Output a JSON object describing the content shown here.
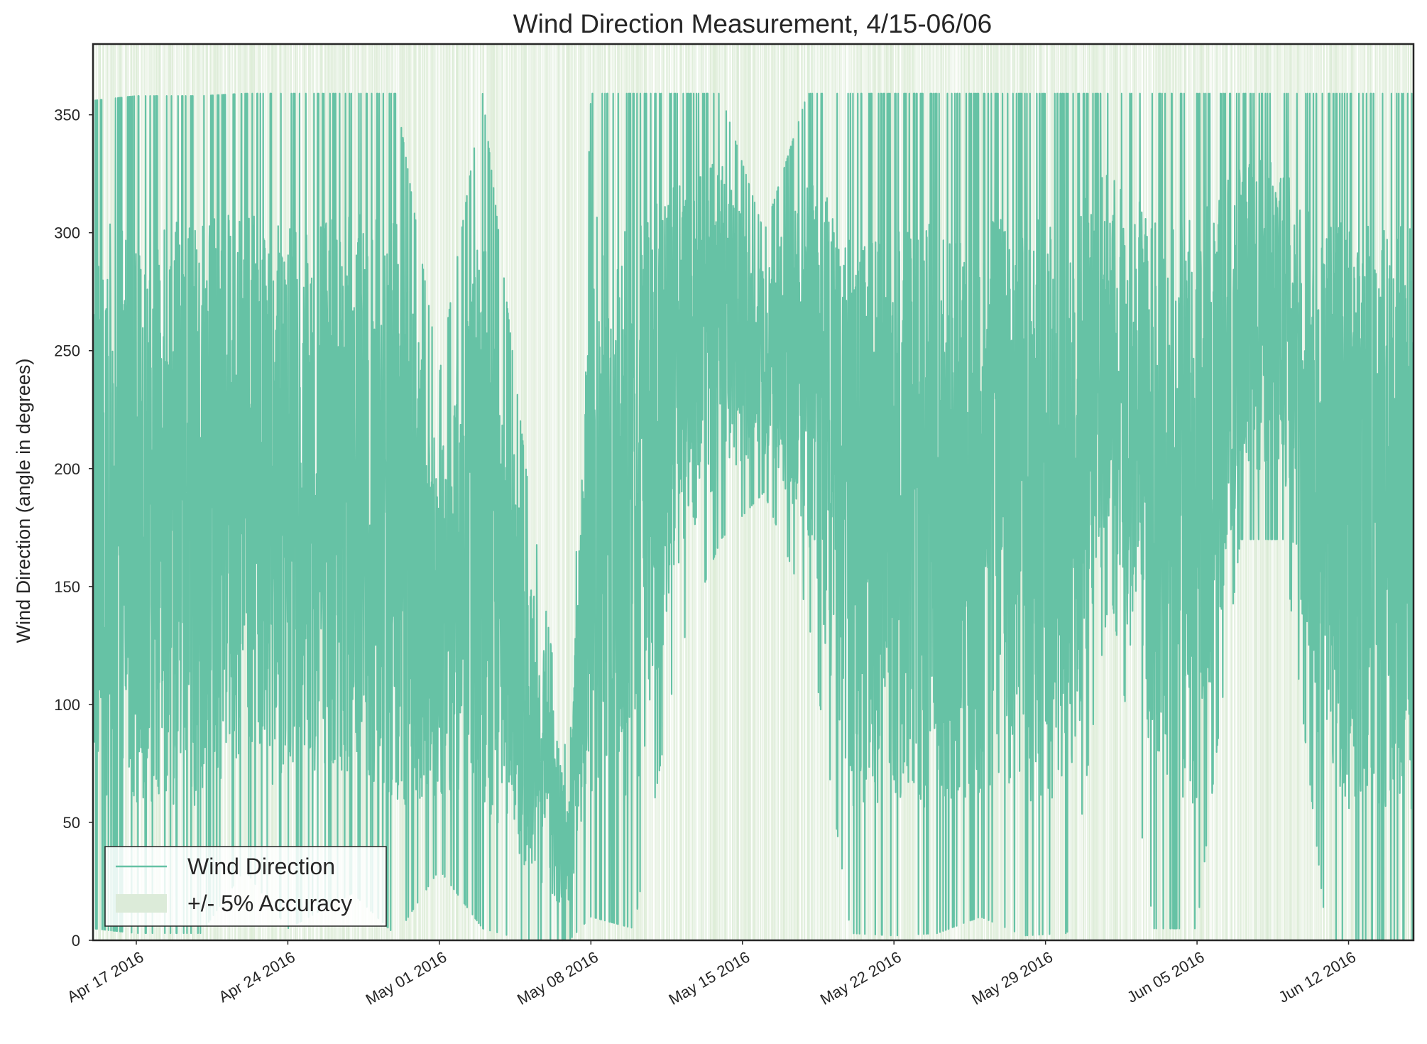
{
  "chart_data": {
    "type": "line",
    "title": "Wind Direction Measurement, 4/15-06/06",
    "xlabel": "",
    "ylabel": "Wind Direction (angle in degrees)",
    "x_range": [
      "2016-04-15",
      "2016-06-15"
    ],
    "ylim": [
      0,
      380
    ],
    "y_ticks": [
      0,
      50,
      100,
      150,
      200,
      250,
      300,
      350
    ],
    "y_tick_labels": [
      "0",
      "50",
      "100",
      "150",
      "200",
      "250",
      "300",
      "350"
    ],
    "x_ticks": [
      "2016-04-17",
      "2016-04-24",
      "2016-05-01",
      "2016-05-08",
      "2016-05-15",
      "2016-05-22",
      "2016-05-29",
      "2016-06-05",
      "2016-06-12"
    ],
    "x_tick_labels": [
      "Apr 17 2016",
      "Apr 24 2016",
      "May 01 2016",
      "May 08 2016",
      "May 15 2016",
      "May 22 2016",
      "May 29 2016",
      "Jun 05 2016",
      "Jun 12 2016"
    ],
    "grid": false,
    "legend_position": "lower-left",
    "series": [
      {
        "name": "Wind Direction",
        "color": "#66c2a5",
        "description_of_values": "high-frequency wind direction samples ranging 0-360",
        "envelope": [
          {
            "x": "2016-04-15",
            "low": 5,
            "high": 356
          },
          {
            "x": "2016-04-17",
            "low": 3,
            "high": 358
          },
          {
            "x": "2016-04-20",
            "low": 3,
            "high": 358
          },
          {
            "x": "2016-04-22",
            "low": 30,
            "high": 359
          },
          {
            "x": "2016-04-24",
            "low": 5,
            "high": 359
          },
          {
            "x": "2016-04-27",
            "low": 20,
            "high": 359
          },
          {
            "x": "2016-04-29",
            "low": 2,
            "high": 359
          },
          {
            "x": "2016-05-01",
            "low": 30,
            "high": 240
          },
          {
            "x": "2016-05-03",
            "low": 5,
            "high": 359
          },
          {
            "x": "2016-05-05",
            "low": 0,
            "high": 200
          },
          {
            "x": "2016-05-07",
            "low": 0,
            "high": 70
          },
          {
            "x": "2016-05-08",
            "low": 10,
            "high": 359
          },
          {
            "x": "2016-05-10",
            "low": 5,
            "high": 359
          },
          {
            "x": "2016-05-12",
            "low": 120,
            "high": 359
          },
          {
            "x": "2016-05-14",
            "low": 170,
            "high": 359
          },
          {
            "x": "2016-05-16",
            "low": 190,
            "high": 300
          },
          {
            "x": "2016-05-18",
            "low": 140,
            "high": 359
          },
          {
            "x": "2016-05-20",
            "low": 3,
            "high": 359
          },
          {
            "x": "2016-05-22",
            "low": 2,
            "high": 359
          },
          {
            "x": "2016-05-24",
            "low": 3,
            "high": 359
          },
          {
            "x": "2016-05-26",
            "low": 10,
            "high": 359
          },
          {
            "x": "2016-05-28",
            "low": 2,
            "high": 359
          },
          {
            "x": "2016-05-30",
            "low": 3,
            "high": 359
          },
          {
            "x": "2016-06-01",
            "low": 150,
            "high": 359
          },
          {
            "x": "2016-06-03",
            "low": 5,
            "high": 359
          },
          {
            "x": "2016-06-05",
            "low": 5,
            "high": 359
          },
          {
            "x": "2016-06-07",
            "low": 170,
            "high": 359
          },
          {
            "x": "2016-06-09",
            "low": 170,
            "high": 359
          },
          {
            "x": "2016-06-11",
            "low": 0,
            "high": 359
          },
          {
            "x": "2016-06-13",
            "low": 0,
            "high": 359
          },
          {
            "x": "2016-06-15",
            "low": 0,
            "high": 359
          }
        ]
      },
      {
        "name": "+/- 5% Accuracy",
        "type": "band",
        "color": "#d9ead3",
        "alpha": 0.7,
        "description_of_values": "shaded band around each sample at +/- 5%"
      }
    ]
  },
  "legend": {
    "items": [
      {
        "label": "Wind Direction",
        "color": "#66c2a5",
        "kind": "line"
      },
      {
        "label": "+/- 5% Accuracy",
        "color": "#dcebd9",
        "kind": "patch"
      }
    ]
  }
}
